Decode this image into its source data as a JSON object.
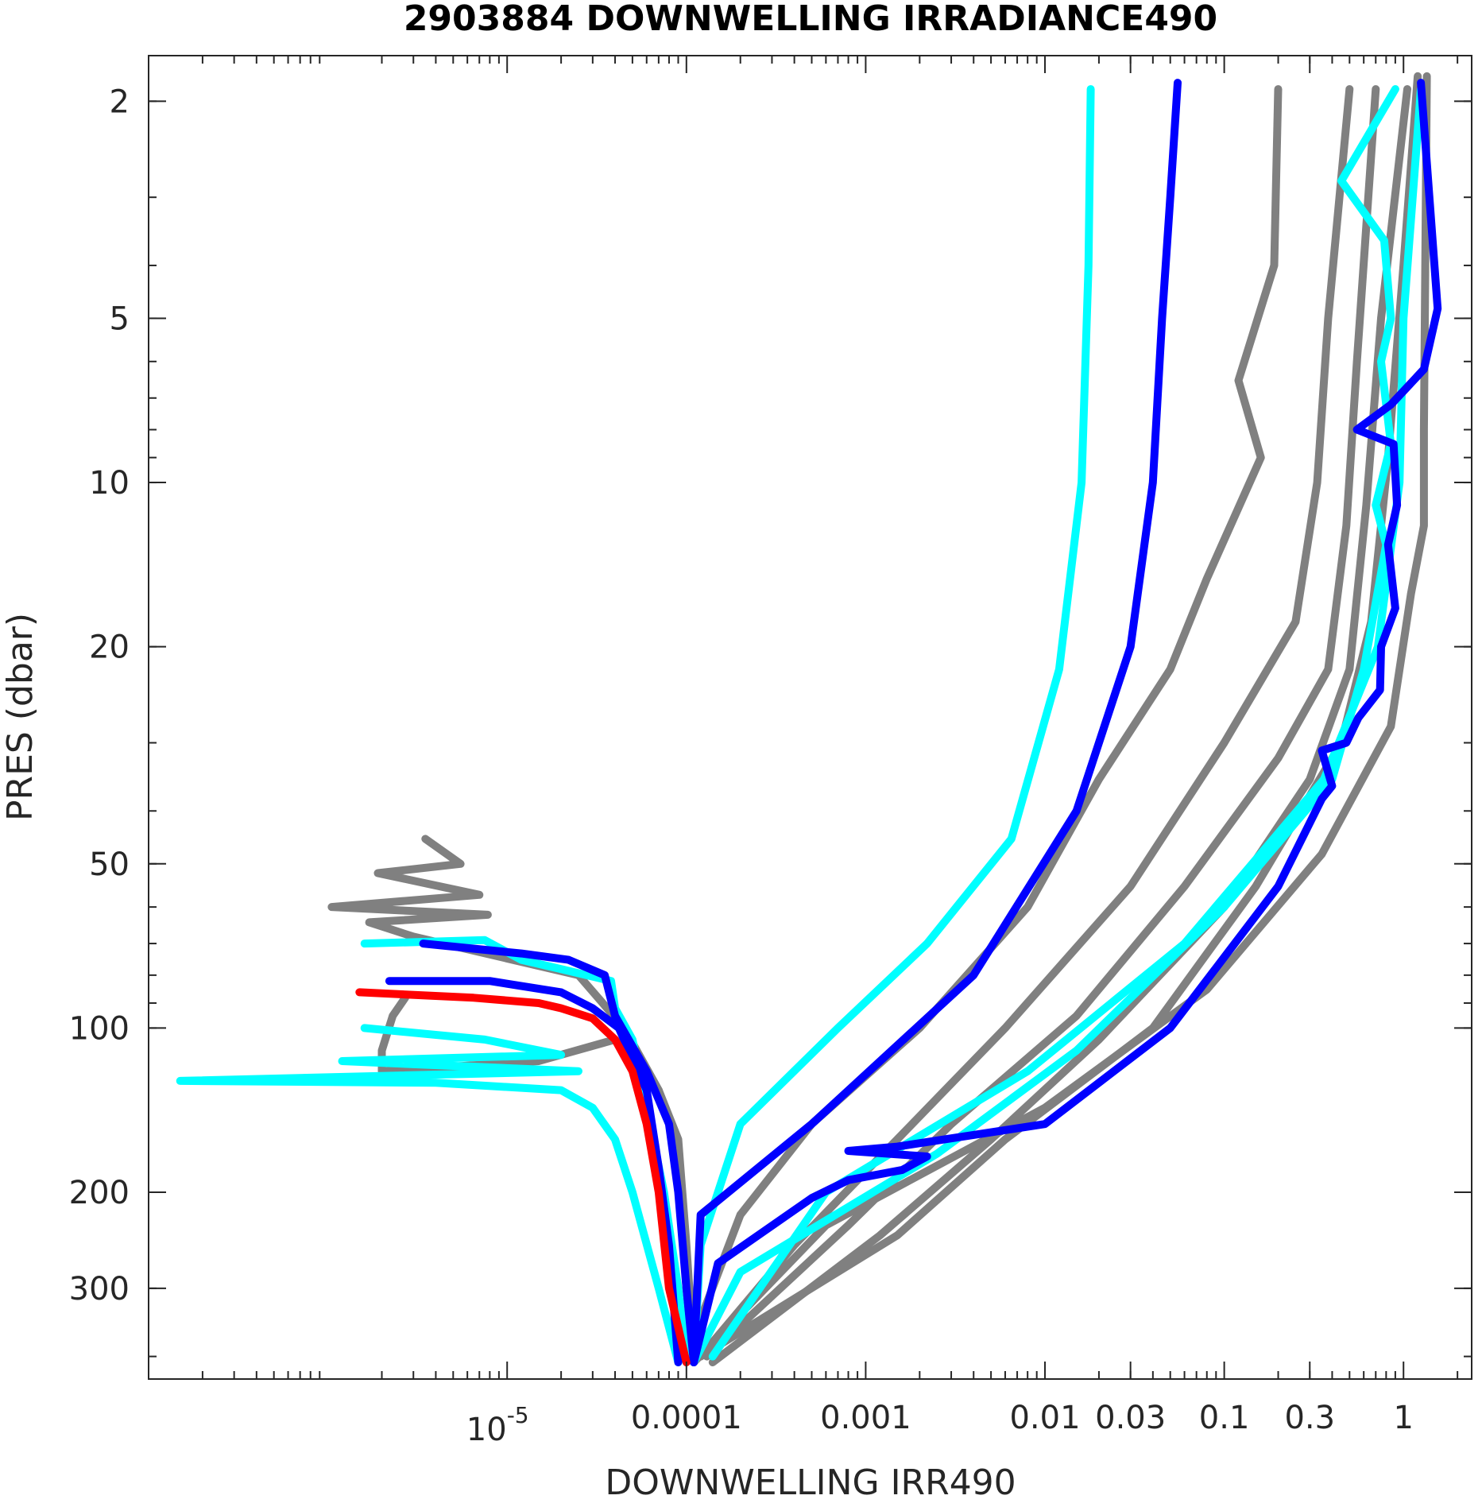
{
  "chart_data": {
    "type": "line",
    "title": "2903884  DOWNWELLING IRRADIANCE490",
    "xlabel": "DOWNWELLING IRR490",
    "ylabel": "PRES (dbar)",
    "xscale": "log",
    "yscale": "log",
    "yreversed": true,
    "xlim": [
      1e-07,
      2.4
    ],
    "ylim": [
      1.65,
      440
    ],
    "grid": false,
    "xticks": [
      {
        "value": 1e-05,
        "label": "10",
        "sup": "-5"
      },
      {
        "value": 0.0001,
        "label": "0.0001",
        "sup": ""
      },
      {
        "value": 0.001,
        "label": "0.001",
        "sup": ""
      },
      {
        "value": 0.01,
        "label": "0.01",
        "sup": ""
      },
      {
        "value": 0.03,
        "label": "0.03",
        "sup": ""
      },
      {
        "value": 0.1,
        "label": "0.1",
        "sup": ""
      },
      {
        "value": 0.3,
        "label": "0.3",
        "sup": ""
      },
      {
        "value": 1,
        "label": "1",
        "sup": ""
      }
    ],
    "yticks": [
      {
        "value": 2,
        "label": "2"
      },
      {
        "value": 5,
        "label": "5"
      },
      {
        "value": 10,
        "label": "10"
      },
      {
        "value": 20,
        "label": "20"
      },
      {
        "value": 50,
        "label": "50"
      },
      {
        "value": 100,
        "label": "100"
      },
      {
        "value": 200,
        "label": "200"
      },
      {
        "value": 300,
        "label": "300"
      }
    ],
    "series": [
      {
        "color": "#808080",
        "points": [
          [
            0.2,
            1.9
          ],
          [
            0.19,
            4
          ],
          [
            0.12,
            6.5
          ],
          [
            0.16,
            9
          ],
          [
            0.08,
            15
          ],
          [
            0.05,
            22
          ],
          [
            0.02,
            35
          ],
          [
            0.008,
            60
          ],
          [
            0.002,
            100
          ],
          [
            0.0005,
            150
          ],
          [
            0.0002,
            220
          ],
          [
            0.0001,
            400
          ]
        ]
      },
      {
        "color": "#808080",
        "points": [
          [
            0.5,
            1.9
          ],
          [
            0.38,
            5
          ],
          [
            0.33,
            10
          ],
          [
            0.25,
            18
          ],
          [
            0.1,
            30
          ],
          [
            0.03,
            55
          ],
          [
            0.006,
            100
          ],
          [
            0.0015,
            160
          ],
          [
            0.0004,
            250
          ],
          [
            0.00012,
            400
          ]
        ]
      },
      {
        "color": "#808080",
        "points": [
          [
            0.7,
            1.9
          ],
          [
            0.55,
            6
          ],
          [
            0.48,
            12
          ],
          [
            0.38,
            22
          ],
          [
            0.2,
            32
          ],
          [
            0.06,
            55
          ],
          [
            0.015,
            95
          ],
          [
            0.003,
            150
          ],
          [
            0.0008,
            230
          ],
          [
            0.00013,
            400
          ]
        ]
      },
      {
        "color": "#808080",
        "points": [
          [
            1.05,
            1.9
          ],
          [
            0.75,
            5
          ],
          [
            0.62,
            11
          ],
          [
            0.5,
            22
          ],
          [
            0.3,
            35
          ],
          [
            0.1,
            60
          ],
          [
            0.02,
            105
          ],
          [
            0.005,
            160
          ],
          [
            0.0012,
            240
          ],
          [
            0.00014,
            410
          ]
        ]
      },
      {
        "color": "#808080",
        "points": [
          [
            1.2,
            1.8
          ],
          [
            1.0,
            4
          ],
          [
            0.82,
            9
          ],
          [
            0.66,
            18
          ],
          [
            0.45,
            30
          ],
          [
            0.15,
            55
          ],
          [
            0.04,
            100
          ],
          [
            0.006,
            160
          ],
          [
            0.0015,
            240
          ],
          [
            0.00012,
            400
          ]
        ]
      },
      {
        "color": "#808080",
        "points": [
          [
            1.35,
            1.8
          ],
          [
            1.3,
            8
          ],
          [
            1.3,
            12
          ],
          [
            1.1,
            16
          ],
          [
            0.85,
            28
          ],
          [
            0.35,
            48
          ],
          [
            0.08,
            85
          ],
          [
            0.01,
            140
          ],
          [
            0.0006,
            230
          ],
          [
            0.00011,
            410
          ]
        ]
      },
      {
        "color": "#808080",
        "points": [
          [
            3.5e-06,
            45
          ],
          [
            5.5e-06,
            50
          ],
          [
            1.9e-06,
            52
          ],
          [
            7e-06,
            57
          ],
          [
            1.05e-06,
            60
          ],
          [
            7.8e-06,
            62
          ],
          [
            1.7e-06,
            64
          ],
          [
            3e-06,
            68
          ],
          [
            2.5e-05,
            80
          ],
          [
            4.5e-05,
            100
          ],
          [
            7e-05,
            130
          ],
          [
            9e-05,
            160
          ],
          [
            0.0001,
            250
          ],
          [
            0.00011,
            400
          ]
        ]
      },
      {
        "color": "#808080",
        "points": [
          [
            2.7e-06,
            88
          ],
          [
            2.3e-06,
            95
          ],
          [
            2e-06,
            110
          ],
          [
            2e-06,
            120
          ],
          [
            1.5e-05,
            115
          ],
          [
            4e-05,
            105
          ],
          [
            7e-05,
            130
          ],
          [
            9e-05,
            170
          ],
          [
            0.0001,
            300
          ],
          [
            0.00011,
            410
          ]
        ]
      },
      {
        "color": "#00FFFF",
        "points": [
          [
            0.018,
            1.9
          ],
          [
            0.0175,
            4
          ],
          [
            0.016,
            10
          ],
          [
            0.012,
            22
          ],
          [
            0.0065,
            45
          ],
          [
            0.0022,
            70
          ],
          [
            0.0007,
            100
          ],
          [
            0.0002,
            150
          ],
          [
            0.00012,
            250
          ],
          [
            0.00011,
            410
          ]
        ]
      },
      {
        "color": "#00FFFF",
        "points": [
          [
            0.9,
            1.9
          ],
          [
            0.45,
            2.8
          ],
          [
            0.78,
            3.6
          ],
          [
            0.85,
            5
          ],
          [
            0.75,
            6
          ],
          [
            0.85,
            8.5
          ],
          [
            0.7,
            11
          ],
          [
            0.8,
            13
          ],
          [
            0.6,
            22
          ],
          [
            0.4,
            35
          ],
          [
            0.1,
            60
          ],
          [
            0.015,
            110
          ],
          [
            0.0025,
            170
          ],
          [
            0.0002,
            280
          ],
          [
            0.00011,
            410
          ]
        ]
      },
      {
        "color": "#00FFFF",
        "points": [
          [
            1.25,
            1.9
          ],
          [
            1.0,
            5
          ],
          [
            0.95,
            10
          ],
          [
            0.72,
            20
          ],
          [
            0.36,
            35
          ],
          [
            0.06,
            70
          ],
          [
            0.008,
            120
          ],
          [
            0.0006,
            200
          ],
          [
            0.00014,
            400
          ]
        ]
      },
      {
        "color": "#00FFFF",
        "points": [
          [
            1.6e-06,
            70
          ],
          [
            7.5e-06,
            69
          ],
          [
            1.2e-05,
            75
          ],
          [
            2e-05,
            78
          ],
          [
            3.8e-05,
            82
          ],
          [
            4e-05,
            92
          ],
          [
            5e-05,
            105
          ],
          [
            6e-05,
            140
          ],
          [
            7.5e-05,
            200
          ],
          [
            9e-05,
            300
          ],
          [
            0.0001,
            410
          ]
        ]
      },
      {
        "color": "#00FFFF",
        "points": [
          [
            1.6e-06,
            100
          ],
          [
            7.5e-06,
            105
          ],
          [
            2e-05,
            112
          ],
          [
            1.2e-06,
            115
          ],
          [
            2.5e-05,
            120
          ],
          [
            1.5e-07,
            125
          ],
          [
            4e-06,
            126
          ],
          [
            2e-05,
            130
          ],
          [
            3e-05,
            140
          ],
          [
            4e-05,
            160
          ],
          [
            5e-05,
            200
          ],
          [
            7e-05,
            300
          ],
          [
            9e-05,
            410
          ]
        ]
      },
      {
        "color": "#0000FF",
        "points": [
          [
            0.055,
            1.85
          ],
          [
            0.05,
            3
          ],
          [
            0.045,
            5
          ],
          [
            0.04,
            10
          ],
          [
            0.03,
            20
          ],
          [
            0.015,
            40
          ],
          [
            0.004,
            80
          ],
          [
            0.0005,
            150
          ],
          [
            0.00012,
            220
          ],
          [
            0.00011,
            410
          ]
        ]
      },
      {
        "color": "#0000FF",
        "points": [
          [
            1.25,
            1.85
          ],
          [
            1.55,
            4.8
          ],
          [
            1.3,
            6.2
          ],
          [
            0.85,
            7.2
          ],
          [
            0.55,
            8
          ],
          [
            0.88,
            8.5
          ],
          [
            0.92,
            11
          ],
          [
            0.82,
            13
          ],
          [
            0.9,
            17
          ],
          [
            0.75,
            20
          ],
          [
            0.74,
            24
          ],
          [
            0.56,
            27
          ],
          [
            0.48,
            30
          ],
          [
            0.35,
            31
          ],
          [
            0.38,
            34
          ],
          [
            0.4,
            36
          ],
          [
            0.35,
            38
          ],
          [
            0.2,
            55
          ],
          [
            0.05,
            100
          ],
          [
            0.01,
            150
          ],
          [
            0.0015,
            165
          ],
          [
            0.0008,
            168
          ],
          [
            0.0022,
            172
          ],
          [
            0.0016,
            182
          ],
          [
            0.0008,
            190
          ],
          [
            0.0005,
            205
          ],
          [
            0.00015,
            270
          ],
          [
            0.00011,
            410
          ]
        ]
      },
      {
        "color": "#0000FF",
        "points": [
          [
            3.4e-06,
            70
          ],
          [
            1.2e-05,
            73
          ],
          [
            2.2e-05,
            75
          ],
          [
            3.5e-05,
            80
          ],
          [
            4e-05,
            95
          ],
          [
            6e-05,
            120
          ],
          [
            8e-05,
            150
          ],
          [
            9e-05,
            200
          ],
          [
            0.0001,
            300
          ],
          [
            0.00011,
            410
          ]
        ]
      },
      {
        "color": "#0000FF",
        "points": [
          [
            2.2e-06,
            82
          ],
          [
            8e-06,
            82
          ],
          [
            2e-05,
            86
          ],
          [
            3e-05,
            92
          ],
          [
            4.2e-05,
            100
          ],
          [
            6e-05,
            130
          ],
          [
            7e-05,
            180
          ],
          [
            8e-05,
            250
          ],
          [
            9e-05,
            410
          ]
        ]
      },
      {
        "color": "#FF0000",
        "points": [
          [
            1.5e-06,
            86
          ],
          [
            6.5e-06,
            88
          ],
          [
            1.5e-05,
            90
          ],
          [
            2e-05,
            92
          ],
          [
            3e-05,
            96
          ],
          [
            4e-05,
            105
          ],
          [
            5e-05,
            120
          ],
          [
            6e-05,
            150
          ],
          [
            7e-05,
            200
          ],
          [
            8e-05,
            300
          ],
          [
            0.0001,
            410
          ]
        ]
      }
    ]
  }
}
